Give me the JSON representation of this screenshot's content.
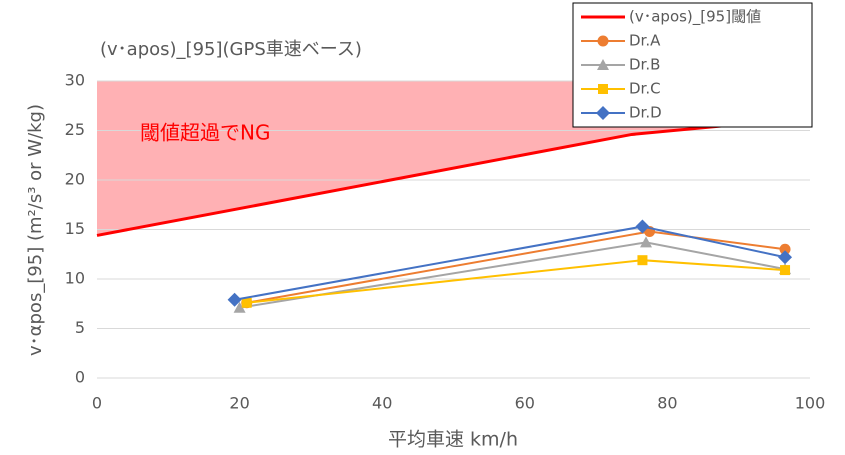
{
  "chart_data": {
    "type": "line",
    "title": "(v･apos)_[95](GPS車速ベース)",
    "x_label": "平均車速 km/h",
    "y_label": "v･αpos_[95]  (m²/s³ or W/kg)",
    "annotation": "閾値超過でNG",
    "annotation_color": "#ff0000",
    "xlim": [
      0,
      100
    ],
    "xticks": [
      0,
      20,
      40,
      60,
      80,
      100
    ],
    "ylim": [
      0,
      30
    ],
    "yticks": [
      0,
      5,
      10,
      15,
      20,
      25,
      30
    ],
    "grid": true,
    "legend": "top-right",
    "series": [
      {
        "name": "(v･apos)_[95]閾値",
        "color": "#ff0000",
        "marker": "none",
        "fill": "#ffb1b4",
        "x": [
          0,
          75,
          100
        ],
        "values": [
          14.4,
          24.6,
          26.3
        ]
      },
      {
        "name": "Dr.A",
        "color": "#ed7d31",
        "marker": "circle",
        "x": [
          21,
          77.5,
          96.5
        ],
        "values": [
          7.6,
          14.8,
          13.0
        ]
      },
      {
        "name": "Dr.B",
        "color": "#a5a5a5",
        "marker": "triangle",
        "x": [
          20,
          77,
          96.5
        ],
        "values": [
          7.1,
          13.7,
          11.0
        ]
      },
      {
        "name": "Dr.C",
        "color": "#ffc000",
        "marker": "square",
        "x": [
          21,
          76.5,
          96.5
        ],
        "values": [
          7.6,
          11.9,
          10.9
        ]
      },
      {
        "name": "Dr.D",
        "color": "#4472c4",
        "marker": "diamond",
        "x": [
          19.3,
          76.5,
          96.5
        ],
        "values": [
          7.9,
          15.3,
          12.2
        ]
      }
    ]
  }
}
